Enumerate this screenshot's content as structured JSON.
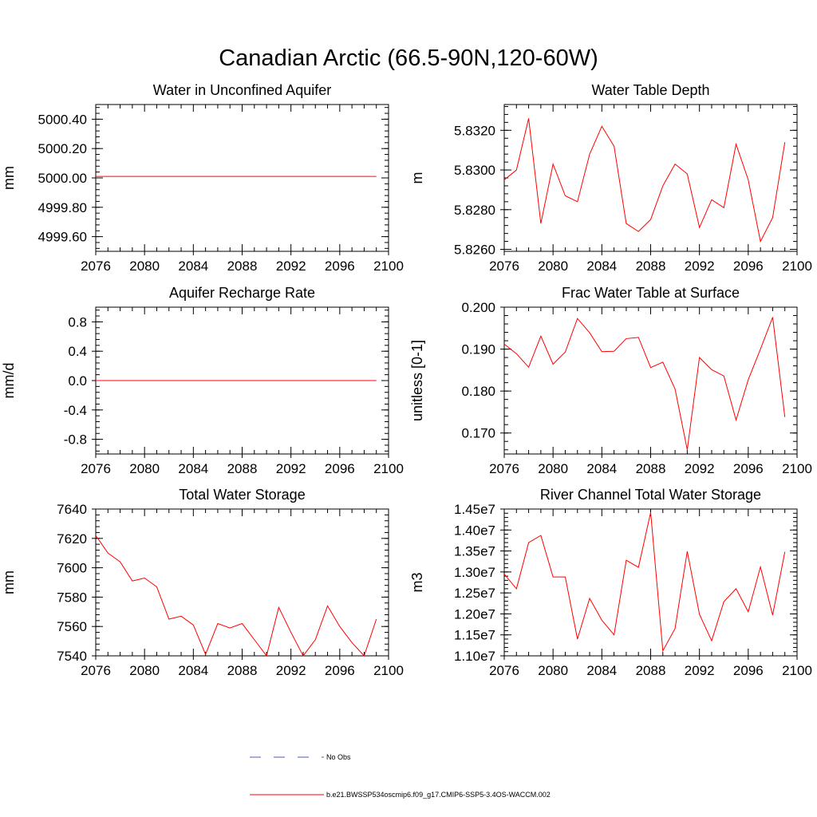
{
  "figure": {
    "title": "Canadian Arctic (66.5-90N,120-60W)"
  },
  "colors": {
    "series": "#ff0000",
    "no_obs": "#4b5bb5"
  },
  "legend": [
    {
      "label": "No Obs",
      "style": "dashed",
      "color": "#4b5bb5"
    },
    {
      "label": "b.e21.BWSSP534oscmip6.f09_g17.CMIP6-SSP5-3.4OS-WACCM.002",
      "style": "solid",
      "color": "#ff0000"
    }
  ],
  "chart_data": [
    {
      "type": "line",
      "title": "Water in Unconfined Aquifer",
      "ylabel": "mm",
      "xlim": [
        2076,
        2100
      ],
      "ylim": [
        4999.5,
        5000.5
      ],
      "xticks": [
        "2076",
        "2080",
        "2084",
        "2088",
        "2092",
        "2096",
        "2100"
      ],
      "yticks": [
        "4999.60",
        "4999.80",
        "5000.00",
        "5000.20",
        "5000.40"
      ],
      "grid": false,
      "x": [
        2076,
        2077,
        2078,
        2079,
        2080,
        2081,
        2082,
        2083,
        2084,
        2085,
        2086,
        2087,
        2088,
        2089,
        2090,
        2091,
        2092,
        2093,
        2094,
        2095,
        2096,
        2097,
        2098,
        2099
      ],
      "series": [
        {
          "values": [
            5000.01,
            5000.01,
            5000.01,
            5000.01,
            5000.01,
            5000.01,
            5000.01,
            5000.01,
            5000.01,
            5000.01,
            5000.01,
            5000.01,
            5000.01,
            5000.01,
            5000.01,
            5000.01,
            5000.01,
            5000.01,
            5000.01,
            5000.01,
            5000.01,
            5000.01,
            5000.01,
            5000.01
          ]
        }
      ]
    },
    {
      "type": "line",
      "title": "Water Table Depth",
      "ylabel": "m",
      "xlim": [
        2076,
        2100
      ],
      "ylim": [
        5.8259,
        5.8333
      ],
      "xticks": [
        "2076",
        "2080",
        "2084",
        "2088",
        "2092",
        "2096",
        "2100"
      ],
      "yticks": [
        "5.8260",
        "5.8280",
        "5.8300",
        "5.8320"
      ],
      "grid": false,
      "x": [
        2076,
        2077,
        2078,
        2079,
        2080,
        2081,
        2082,
        2083,
        2084,
        2085,
        2086,
        2087,
        2088,
        2089,
        2090,
        2091,
        2092,
        2093,
        2094,
        2095,
        2096,
        2097,
        2098,
        2099
      ],
      "series": [
        {
          "values": [
            5.8295,
            5.83,
            5.8326,
            5.8273,
            5.8303,
            5.8287,
            5.8284,
            5.8308,
            5.8322,
            5.8312,
            5.8273,
            5.8269,
            5.8275,
            5.8292,
            5.8303,
            5.8298,
            5.8271,
            5.8285,
            5.8281,
            5.8313,
            5.8295,
            5.8264,
            5.8276,
            5.8314
          ]
        }
      ]
    },
    {
      "type": "line",
      "title": "Aquifer Recharge Rate",
      "ylabel": "mm/d",
      "xlim": [
        2076,
        2100
      ],
      "ylim": [
        -1.0,
        1.0
      ],
      "xticks": [
        "2076",
        "2080",
        "2084",
        "2088",
        "2092",
        "2096",
        "2100"
      ],
      "yticks": [
        "-0.8",
        "-0.4",
        "0.0",
        "0.4",
        "0.8"
      ],
      "grid": false,
      "x": [
        2076,
        2077,
        2078,
        2079,
        2080,
        2081,
        2082,
        2083,
        2084,
        2085,
        2086,
        2087,
        2088,
        2089,
        2090,
        2091,
        2092,
        2093,
        2094,
        2095,
        2096,
        2097,
        2098,
        2099
      ],
      "series": [
        {
          "values": [
            0,
            0,
            0,
            0,
            0,
            0,
            0,
            0,
            0,
            0,
            0,
            0,
            0,
            0,
            0,
            0,
            0,
            0,
            0,
            0,
            0,
            0,
            0,
            0
          ]
        }
      ]
    },
    {
      "type": "line",
      "title": "Frac Water Table at Surface",
      "ylabel": "unitless [0-1]",
      "xlim": [
        2076,
        2100
      ],
      "ylim": [
        0.165,
        0.2
      ],
      "xticks": [
        "2076",
        "2080",
        "2084",
        "2088",
        "2092",
        "2096",
        "2100"
      ],
      "yticks": [
        "0.170",
        "0.180",
        "0.190",
        "0.200"
      ],
      "grid": false,
      "x": [
        2076,
        2077,
        2078,
        2079,
        2080,
        2081,
        2082,
        2083,
        2084,
        2085,
        2086,
        2087,
        2088,
        2089,
        2090,
        2091,
        2092,
        2093,
        2094,
        2095,
        2096,
        2097,
        2098,
        2099
      ],
      "series": [
        {
          "values": [
            0.1912,
            0.1889,
            0.1857,
            0.1931,
            0.1864,
            0.1893,
            0.1973,
            0.1939,
            0.1894,
            0.1895,
            0.1925,
            0.1928,
            0.1856,
            0.1869,
            0.1805,
            0.166,
            0.188,
            0.1851,
            0.1836,
            0.1731,
            0.1827,
            0.19,
            0.1976,
            0.1738
          ]
        }
      ]
    },
    {
      "type": "line",
      "title": "Total Water Storage",
      "ylabel": "mm",
      "xlim": [
        2076,
        2100
      ],
      "ylim": [
        7540,
        7640
      ],
      "xticks": [
        "2076",
        "2080",
        "2084",
        "2088",
        "2092",
        "2096",
        "2100"
      ],
      "yticks": [
        "7540",
        "7560",
        "7580",
        "7600",
        "7620",
        "7640"
      ],
      "grid": false,
      "x": [
        2076,
        2077,
        2078,
        2079,
        2080,
        2081,
        2082,
        2083,
        2084,
        2085,
        2086,
        2087,
        2088,
        2089,
        2090,
        2091,
        2092,
        2093,
        2094,
        2095,
        2096,
        2097,
        2098,
        2099
      ],
      "series": [
        {
          "values": [
            7622,
            7610,
            7604,
            7591,
            7593,
            7587,
            7565,
            7567,
            7561,
            7541,
            7562,
            7559,
            7562,
            7551,
            7540,
            7573,
            7556,
            7540,
            7551,
            7574,
            7560,
            7549,
            7540,
            7565
          ]
        }
      ]
    },
    {
      "type": "line",
      "title": "River Channel Total Water Storage",
      "ylabel": "m3",
      "xlim": [
        2076,
        2100
      ],
      "ylim": [
        11000000,
        14500000
      ],
      "xticks": [
        "2076",
        "2080",
        "2084",
        "2088",
        "2092",
        "2096",
        "2100"
      ],
      "yticks": [
        "1.10e7",
        "1.15e7",
        "1.20e7",
        "1.25e7",
        "1.30e7",
        "1.35e7",
        "1.40e7",
        "1.45e7"
      ],
      "grid": false,
      "x": [
        2076,
        2077,
        2078,
        2079,
        2080,
        2081,
        2082,
        2083,
        2084,
        2085,
        2086,
        2087,
        2088,
        2089,
        2090,
        2091,
        2092,
        2093,
        2094,
        2095,
        2096,
        2097,
        2098,
        2099
      ],
      "series": [
        {
          "values": [
            12950000,
            12600000,
            13700000,
            13870000,
            12880000,
            12880000,
            11400000,
            12370000,
            11850000,
            11500000,
            13280000,
            13110000,
            14420000,
            11120000,
            11650000,
            13490000,
            11990000,
            11360000,
            12290000,
            12600000,
            12050000,
            13120000,
            11970000,
            13480000
          ]
        }
      ]
    }
  ]
}
